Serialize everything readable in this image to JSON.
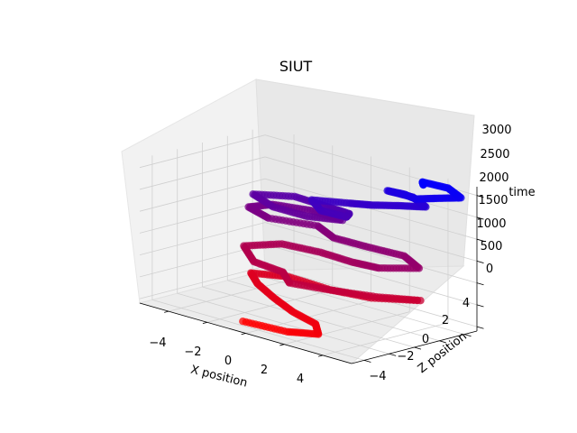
{
  "chart_data": {
    "type": "scatter",
    "projection": "3d",
    "title": "SIUT",
    "xlabel": "X position",
    "ylabel": "Z position",
    "zlabel": "time",
    "x_ticks": [
      "−4",
      "−2",
      "0",
      "2",
      "4"
    ],
    "y_ticks": [
      "−4",
      "−2",
      "0",
      "2",
      "4"
    ],
    "z_ticks": [
      "0",
      "500",
      "1000",
      "1500",
      "2000",
      "2500",
      "3000"
    ],
    "xlim": [
      -5.5,
      5.5
    ],
    "ylim": [
      -5,
      5
    ],
    "zlim": [
      -100,
      3200
    ],
    "grid": true,
    "colormap": "time: red (t=0) to blue (t≈3000)",
    "color_start": "#ff0000",
    "color_end": "#0000ff",
    "series": [
      {
        "points": [
          [
            -0.8,
            -4.0,
            0
          ],
          [
            1.5,
            -4.0,
            50
          ],
          [
            2.8,
            -3.5,
            120
          ],
          [
            2.0,
            -2.5,
            180
          ],
          [
            0.5,
            -2.0,
            230
          ],
          [
            -1.0,
            -1.2,
            300
          ],
          [
            -2.5,
            -0.2,
            360
          ],
          [
            -3.5,
            0.8,
            410
          ],
          [
            -2.0,
            1.5,
            460
          ],
          [
            0.5,
            1.0,
            510
          ],
          [
            2.5,
            1.2,
            560
          ],
          [
            4.2,
            2.5,
            620
          ],
          [
            3.0,
            0.8,
            680
          ],
          [
            1.5,
            -0.5,
            740
          ],
          [
            0.0,
            -1.5,
            790
          ],
          [
            -1.0,
            -0.5,
            840
          ],
          [
            -2.5,
            -0.5,
            890
          ],
          [
            -4.0,
            1.0,
            950
          ],
          [
            -3.0,
            2.5,
            1010
          ],
          [
            -1.0,
            2.5,
            1070
          ],
          [
            1.0,
            2.0,
            1130
          ],
          [
            2.5,
            1.8,
            1200
          ],
          [
            3.8,
            3.0,
            1270
          ],
          [
            2.5,
            3.8,
            1330
          ],
          [
            1.0,
            3.2,
            1390
          ],
          [
            -0.5,
            2.8,
            1440
          ],
          [
            -1.8,
            3.5,
            1500
          ],
          [
            -3.5,
            2.2,
            1560
          ],
          [
            -4.8,
            2.6,
            1620
          ],
          [
            -4.2,
            3.6,
            1680
          ],
          [
            -2.5,
            4.0,
            1730
          ],
          [
            -0.5,
            3.5,
            1790
          ],
          [
            -1.5,
            2.2,
            1850
          ],
          [
            -3.0,
            1.8,
            1910
          ],
          [
            -4.5,
            2.5,
            1960
          ],
          [
            -3.0,
            3.5,
            2020
          ],
          [
            -1.0,
            3.0,
            2080
          ],
          [
            0.5,
            2.5,
            2140
          ],
          [
            1.0,
            1.5,
            2200
          ],
          [
            0.0,
            1.0,
            2260
          ],
          [
            -1.0,
            1.8,
            2320
          ],
          [
            0.5,
            2.5,
            2380
          ],
          [
            1.5,
            2.8,
            2440
          ],
          [
            2.5,
            3.5,
            2500
          ],
          [
            3.5,
            4.0,
            2560
          ],
          [
            2.5,
            4.5,
            2620
          ],
          [
            1.5,
            4.0,
            2680
          ],
          [
            2.5,
            3.8,
            2740
          ],
          [
            3.5,
            3.2,
            2800
          ],
          [
            4.2,
            3.8,
            2860
          ],
          [
            5.0,
            4.5,
            2920
          ],
          [
            4.0,
            5.0,
            2980
          ],
          [
            3.0,
            4.5,
            3030
          ],
          [
            3.5,
            3.8,
            3080
          ]
        ]
      }
    ]
  }
}
